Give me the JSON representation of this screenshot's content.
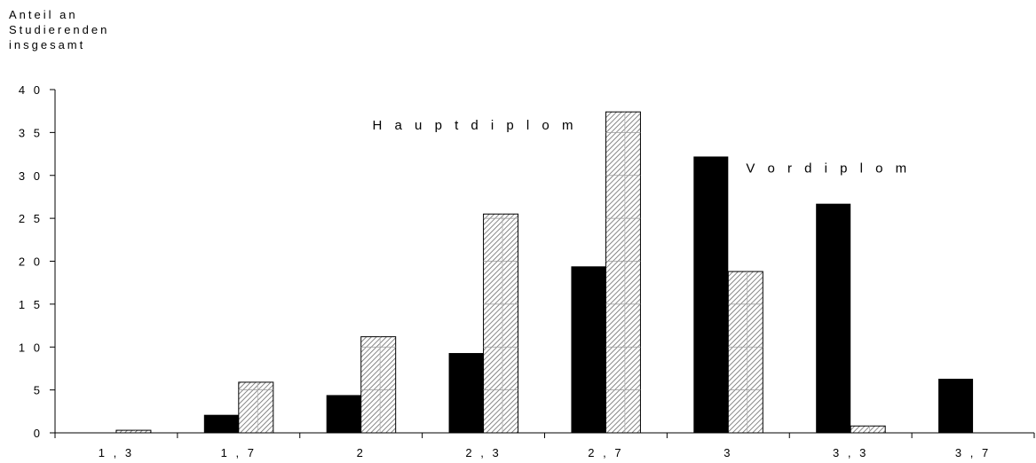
{
  "chart_data": {
    "type": "bar",
    "ylabel": "Anteil an\nStudierenden\ninsgesamt",
    "xlabel": "",
    "categories": [
      "1,3",
      "1,7",
      "2",
      "2,3",
      "2,7",
      "3",
      "3,3",
      "3,7"
    ],
    "series": [
      {
        "name": "Vordiplom",
        "values": [
          0,
          2.1,
          4.4,
          9.3,
          19.4,
          32.2,
          26.7,
          6.3
        ],
        "color": "#000000"
      },
      {
        "name": "Hauptdiplom",
        "values": [
          0.3,
          5.9,
          11.2,
          25.5,
          37.4,
          18.8,
          0.8,
          0
        ],
        "color": "#cfcfcf"
      }
    ],
    "ylim": [
      0,
      40
    ],
    "yticks": [
      0,
      5,
      10,
      15,
      20,
      25,
      30,
      35,
      40
    ],
    "ytick_labels": [
      "0",
      "5",
      "1 0",
      "1 5",
      "2 0",
      "2 5",
      "3 0",
      "3 5",
      "4 0"
    ],
    "xtick_labels": [
      "1 , 3",
      "1 , 7",
      "2",
      "2 , 3",
      "2 , 7",
      "3",
      "3 , 3",
      "3 , 7"
    ],
    "annotations": [
      {
        "text": "H a u p t d i p l o m",
        "series": "Hauptdiplom"
      },
      {
        "text": "V o r d i p l o m",
        "series": "Vordiplom"
      }
    ],
    "grid": false,
    "legend": "none"
  }
}
